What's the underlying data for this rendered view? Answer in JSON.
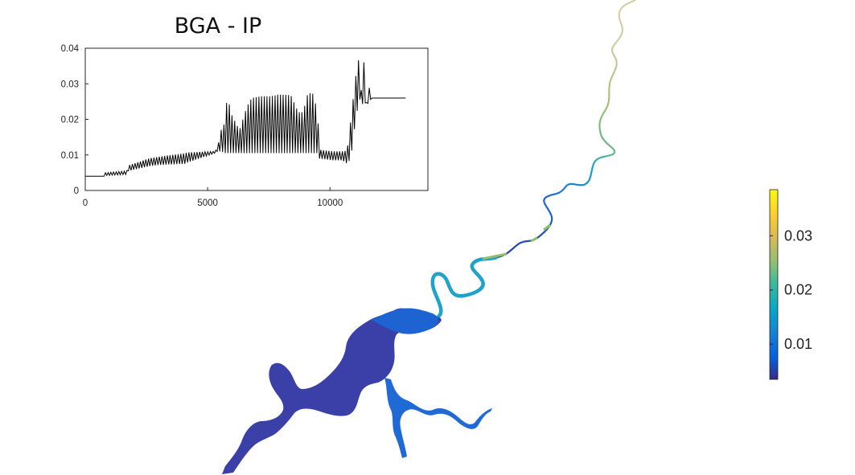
{
  "chart_data": [
    {
      "type": "line",
      "title": "BGA - IP",
      "xlabel": "",
      "ylabel": "",
      "xlim": [
        0,
        14000
      ],
      "ylim": [
        0,
        0.04
      ],
      "xticks": [
        0,
        5000,
        10000
      ],
      "xtick_labels": [
        "0",
        "5000",
        "10000"
      ],
      "yticks": [
        0,
        0.01,
        0.02,
        0.03,
        0.04
      ],
      "ytick_labels": [
        "0",
        "0.01",
        "0.02",
        "0.03",
        "0.04"
      ],
      "grid": false,
      "line_color": "#000000",
      "envelope": {
        "x": [
          0,
          800,
          820,
          1700,
          1750,
          2600,
          3000,
          4100,
          4150,
          5300,
          5400,
          5550,
          5700,
          5800,
          6000,
          6300,
          6600,
          6800,
          7200,
          7600,
          7900,
          8400,
          8700,
          8900,
          9100,
          9300,
          9500,
          9550,
          10100,
          10500,
          10700,
          10850,
          11050,
          11200,
          11300,
          11400,
          11500,
          11600,
          11700,
          12000,
          13100
        ],
        "upper": [
          0.004,
          0.004,
          0.005,
          0.0055,
          0.007,
          0.009,
          0.0095,
          0.0105,
          0.0107,
          0.011,
          0.012,
          0.017,
          0.019,
          0.0265,
          0.021,
          0.017,
          0.0235,
          0.026,
          0.0265,
          0.0265,
          0.027,
          0.0268,
          0.022,
          0.022,
          0.0275,
          0.0272,
          0.022,
          0.0115,
          0.011,
          0.011,
          0.0112,
          0.02,
          0.032,
          0.038,
          0.025,
          0.038,
          0.024,
          0.029,
          0.026,
          0.026,
          0.026
        ],
        "lower": [
          0.004,
          0.004,
          0.0042,
          0.0045,
          0.0055,
          0.0068,
          0.0072,
          0.0075,
          0.0078,
          0.0105,
          0.011,
          0.011,
          0.0105,
          0.0105,
          0.0105,
          0.0105,
          0.0105,
          0.0105,
          0.0105,
          0.0105,
          0.0105,
          0.0105,
          0.0105,
          0.0105,
          0.0105,
          0.0105,
          0.0105,
          0.009,
          0.0085,
          0.0085,
          0.0075,
          0.009,
          0.02,
          0.026,
          0.024,
          0.025,
          0.024,
          0.025,
          0.026,
          0.026,
          0.026
        ]
      },
      "notes": "Dense black line with rapid oscillation between lower and upper envelopes; flat at 0.026 from ~11700 to ~13100."
    },
    {
      "type": "heatmap",
      "title": "",
      "colormap": "parula",
      "colorbar": {
        "range": [
          0.0035,
          0.0385
        ],
        "ticks": [
          0.01,
          0.02,
          0.03
        ],
        "tick_labels": [
          "0.01",
          "0.02",
          "0.03"
        ],
        "location": "right"
      },
      "map_description_colors": {
        "reservoir": "#3a3ea8",
        "lower_river": "#1f6bd6",
        "mid_river": "#14a3c8",
        "upper_river": "#7ec07b",
        "top_river": "#c9c27a"
      }
    }
  ]
}
